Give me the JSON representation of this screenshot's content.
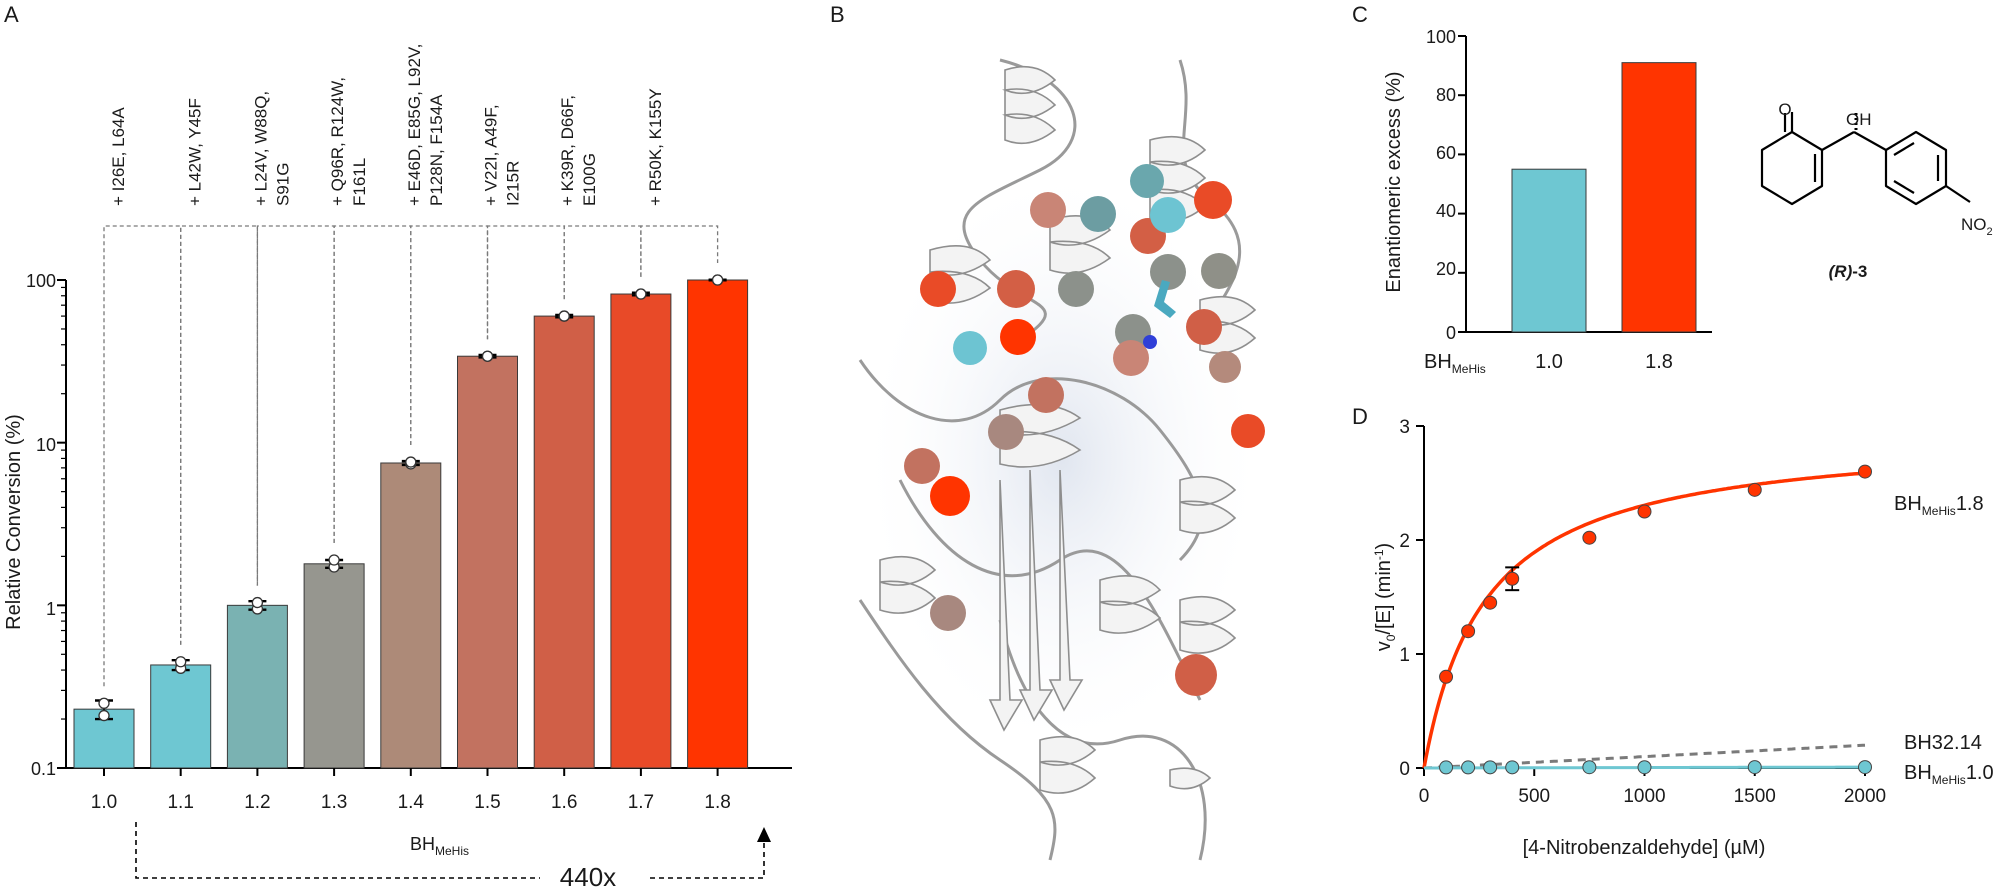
{
  "panels": {
    "A": {
      "letter": "A",
      "ylabel": "Relative Conversion (%)",
      "xlabel_main": "BH",
      "xlabel_sub": "MeHis",
      "fold_label": "440x",
      "yticks": [
        "100",
        "10",
        "1",
        "0.1"
      ]
    },
    "B": {
      "letter": "B"
    },
    "C": {
      "letter": "C",
      "ylabel": "Enantiomeric excess (%)",
      "row_label_main": "BH",
      "row_label_sub": "MeHis",
      "yticks": [
        "100",
        "80",
        "60",
        "40",
        "20",
        "0"
      ],
      "compound": {
        "ketone_o": "O",
        "oh": "OH",
        "no2_main": "NO",
        "no2_sub": "2",
        "label_r": "(R)",
        "label_num": "-3"
      }
    },
    "D": {
      "letter": "D",
      "ylabel_v": "v",
      "ylabel_sub": "0",
      "ylabel_rest": "/[E] (min",
      "ylabel_sup": "-1",
      "ylabel_end": ")",
      "xlabel": "[4-Nitrobenzaldehyde] (µM)",
      "xticks": [
        "0",
        "500",
        "1000",
        "1500",
        "2000"
      ],
      "yticks": [
        "0",
        "1",
        "2",
        "3"
      ],
      "legend": {
        "s18_main": "BH",
        "s18_sub": "MeHis",
        "s18_val": "1.8",
        "bh": "BH32.14",
        "s10_main": "BH",
        "s10_sub": "MeHis",
        "s10_val": "1.0"
      }
    }
  },
  "chart_data": [
    {
      "type": "bar",
      "panel": "A",
      "yscale": "log",
      "ylim": [
        0.1,
        100
      ],
      "ylabel": "Relative Conversion (%)",
      "xlabel": "BHMeHis",
      "categories": [
        "1.0",
        "1.1",
        "1.2",
        "1.3",
        "1.4",
        "1.5",
        "1.6",
        "1.7",
        "1.8"
      ],
      "values": [
        0.23,
        0.43,
        1.0,
        1.8,
        7.5,
        34,
        60,
        82,
        100
      ],
      "errors": [
        0.03,
        0.03,
        0.06,
        0.1,
        0.2,
        0.6,
        1.0,
        1.5,
        0.5
      ],
      "replicates": [
        [
          0.21,
          0.25
        ],
        [
          0.41,
          0.45
        ],
        [
          0.95,
          1.04
        ],
        [
          1.72,
          1.9
        ],
        [
          7.4,
          7.6
        ],
        [
          34,
          34
        ],
        [
          60,
          60
        ],
        [
          82,
          82
        ],
        [
          100,
          100
        ]
      ],
      "mutations": [
        "+ I26E, L64A",
        "+ L42W, Y45F",
        "+ L24V, W88Q,\nS91G",
        "+ Q96R, R124W,\nF161L",
        "+ E46D, E85G, L92V,\nP128N, F154A",
        "+ V22I, A49F,\nI215R",
        "+ K39R, D66F,\nE100G",
        "+ R50K, K155Y"
      ],
      "colors": [
        "#6ec7d2",
        "#6ec7d2",
        "#7ab2b2",
        "#96968f",
        "#ad8a78",
        "#c27260",
        "#d05f47",
        "#e84a28",
        "#ff3400"
      ],
      "annotation": "440x"
    },
    {
      "type": "bar",
      "panel": "C",
      "ylim": [
        0,
        100
      ],
      "ylabel": "Enantiomeric excess (%)",
      "categories": [
        "1.0",
        "1.8"
      ],
      "values": [
        55,
        91
      ],
      "colors": [
        "#6ec7d2",
        "#ff3400"
      ]
    },
    {
      "type": "scatter",
      "panel": "D",
      "xlim": [
        0,
        2000
      ],
      "ylim": [
        0,
        3
      ],
      "xlabel": "[4-Nitrobenzaldehyde] (µM)",
      "ylabel": "v0/[E] (min-1)",
      "series": [
        {
          "name": "BHMeHis1.8",
          "color": "#ff3400",
          "x": [
            100,
            200,
            300,
            400,
            750,
            1000,
            1500,
            2000
          ],
          "y": [
            0.8,
            1.2,
            1.45,
            1.66,
            2.02,
            2.25,
            2.44,
            2.6
          ],
          "yerr": [
            0,
            0,
            0,
            0.1,
            0,
            0,
            0,
            0
          ],
          "fit": {
            "model": "michaelis-menten",
            "vmax": 2.95,
            "km": 280
          }
        },
        {
          "name": "BH32.14",
          "color": "#7a7a7a",
          "line": "dashed",
          "fit": {
            "model": "linear",
            "slope": 0.0001
          }
        },
        {
          "name": "BHMeHis1.0",
          "color": "#6ec7d2",
          "x": [
            100,
            200,
            300,
            400,
            750,
            1000,
            1500,
            2000
          ],
          "y": [
            0.005,
            0.005,
            0.006,
            0.006,
            0.007,
            0.007,
            0.008,
            0.008
          ],
          "fit": {
            "model": "linear",
            "slope": 4e-06
          }
        }
      ]
    }
  ]
}
